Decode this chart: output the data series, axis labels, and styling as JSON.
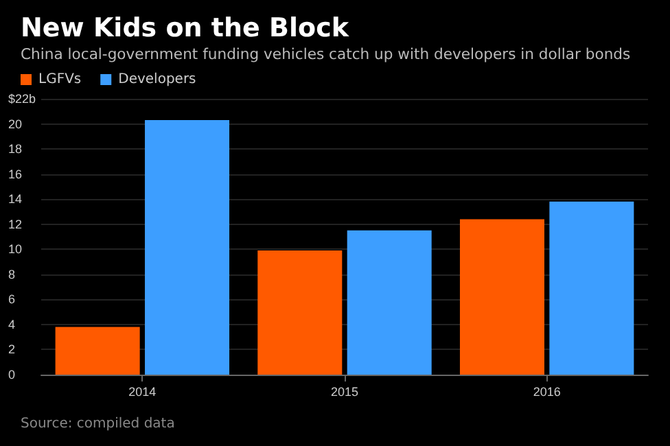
{
  "chart_data": {
    "type": "bar",
    "title": "New Kids on the Block",
    "subtitle": "China local-government funding vehicles catch up with developers in dollar bonds",
    "categories": [
      "2014",
      "2015",
      "2016"
    ],
    "series": [
      {
        "name": "LGFVs",
        "color": "#ff5a00",
        "values": [
          3.8,
          9.9,
          12.4
        ]
      },
      {
        "name": "Developers",
        "color": "#3d9eff",
        "values": [
          20.3,
          11.5,
          13.8
        ]
      }
    ],
    "ylim": [
      0,
      22
    ],
    "yticks": [
      0,
      2,
      4,
      6,
      8,
      10,
      12,
      14,
      16,
      18,
      20,
      {
        "value": 22,
        "label": "$22b"
      }
    ],
    "grid": "y",
    "legend": "top left",
    "annotations": [
      "Source: compiled data"
    ]
  }
}
